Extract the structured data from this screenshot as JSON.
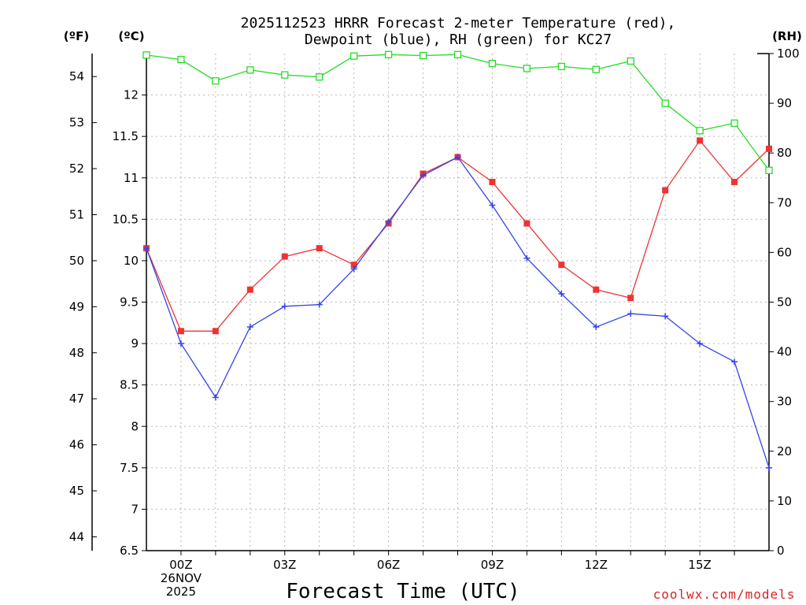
{
  "chart_data": {
    "type": "line",
    "title_lines": [
      "2025112523 HRRR Forecast 2-meter Temperature (red),",
      "Dewpoint (blue), RH (green) for KC27"
    ],
    "left_unit_f": "(ºF)",
    "left_unit_c": "(ºC)",
    "right_unit": "(RH)",
    "xlabel": "Forecast Time (UTC)",
    "credit": "coolwx.com/models",
    "x_hours": [
      -1,
      0,
      1,
      2,
      3,
      4,
      5,
      6,
      7,
      8,
      9,
      10,
      11,
      12,
      13,
      14,
      15,
      16,
      17
    ],
    "xlim": [
      -1,
      17
    ],
    "x_ticks": [
      {
        "hour": 0,
        "lines": [
          "00Z",
          "26NOV",
          "2025"
        ]
      },
      {
        "hour": 3,
        "lines": [
          "03Z"
        ]
      },
      {
        "hour": 6,
        "lines": [
          "06Z"
        ]
      },
      {
        "hour": 9,
        "lines": [
          "09Z"
        ]
      },
      {
        "hour": 12,
        "lines": [
          "12Z"
        ]
      },
      {
        "hour": 15,
        "lines": [
          "15Z"
        ]
      }
    ],
    "celsius_axis": {
      "ylim": [
        6.5,
        12.5
      ],
      "ticks": [
        "6.5",
        "7",
        "7.5",
        "8",
        "8.5",
        "9",
        "9.5",
        "10",
        "10.5",
        "11",
        "11.5",
        "12"
      ]
    },
    "fahrenheit_axis": {
      "ticks": [
        "44",
        "45",
        "46",
        "47",
        "48",
        "49",
        "50",
        "51",
        "52",
        "53",
        "54"
      ]
    },
    "rh_axis": {
      "ylim": [
        0,
        100
      ],
      "ticks": [
        "0",
        "10",
        "20",
        "30",
        "40",
        "50",
        "60",
        "70",
        "80",
        "90",
        "100"
      ]
    },
    "series": [
      {
        "name": "Temperature",
        "axis": "celsius",
        "color": "#ee3333",
        "marker": "filled-square",
        "values": [
          10.15,
          9.15,
          9.15,
          9.65,
          10.05,
          10.15,
          9.95,
          10.45,
          11.05,
          11.25,
          10.95,
          10.45,
          9.95,
          9.65,
          9.55,
          10.85,
          11.45,
          10.95,
          11.35
        ]
      },
      {
        "name": "Dewpoint",
        "axis": "celsius",
        "color": "#3344ee",
        "marker": "plus",
        "values": [
          10.15,
          9.0,
          8.35,
          9.2,
          9.45,
          9.47,
          9.9,
          10.47,
          11.03,
          11.25,
          10.67,
          10.03,
          9.6,
          9.2,
          9.36,
          9.33,
          9.0,
          8.78,
          7.5
        ]
      },
      {
        "name": "RH",
        "axis": "rh",
        "color": "#22dd22",
        "marker": "open-square",
        "values": [
          99.7,
          98.8,
          94.5,
          96.7,
          95.7,
          95.3,
          99.5,
          99.8,
          99.6,
          99.8,
          98.0,
          97.0,
          97.4,
          96.8,
          98.5,
          90.0,
          84.5,
          86.0,
          76.5
        ]
      }
    ]
  }
}
